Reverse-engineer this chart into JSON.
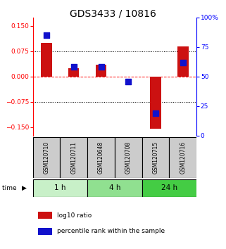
{
  "title": "GDS3433 / 10816",
  "samples": [
    "GSM120710",
    "GSM120711",
    "GSM120648",
    "GSM120708",
    "GSM120715",
    "GSM120716"
  ],
  "log10_ratio": [
    0.1,
    0.025,
    0.035,
    0.0,
    -0.155,
    0.09
  ],
  "percentile_rank": [
    0.85,
    0.58,
    0.58,
    0.46,
    0.19,
    0.62
  ],
  "ylim_left": [
    -0.175,
    0.175
  ],
  "ylim_right": [
    0,
    100
  ],
  "yticks_left": [
    -0.15,
    -0.075,
    0,
    0.075,
    0.15
  ],
  "yticks_right": [
    0,
    25,
    50,
    75,
    100
  ],
  "hlines": [
    -0.075,
    0,
    0.075
  ],
  "groups": [
    {
      "label": "1 h",
      "indices": [
        0,
        1
      ],
      "color": "#c8f0c8"
    },
    {
      "label": "4 h",
      "indices": [
        2,
        3
      ],
      "color": "#90e090"
    },
    {
      "label": "24 h",
      "indices": [
        4,
        5
      ],
      "color": "#44cc44"
    }
  ],
  "bar_color": "#cc1111",
  "dot_color": "#1111cc",
  "bar_width": 0.4,
  "dot_size": 28,
  "background_plot": "#ffffff",
  "background_label": "#cccccc",
  "title_fontsize": 10,
  "tick_fontsize": 6.5,
  "label_fontsize": 7.5,
  "sample_fontsize": 5.5,
  "legend_fontsize": 6.5
}
